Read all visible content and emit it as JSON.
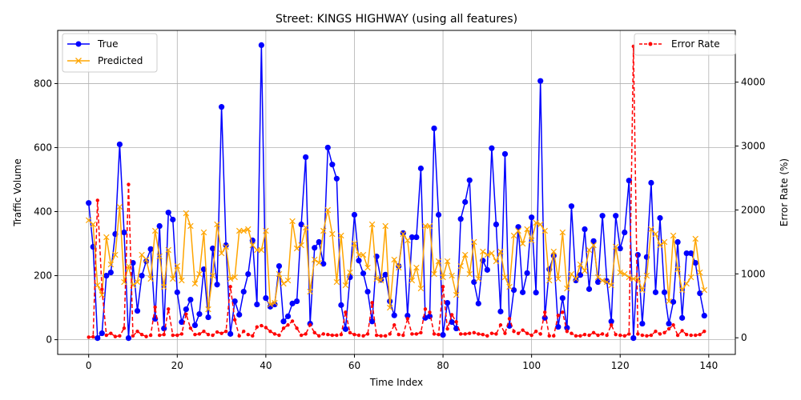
{
  "chart_data": {
    "type": "line",
    "title": "Street: KINGS HIGHWAY (using all features)",
    "xlabel": "Time Index",
    "ylabel_left": "Traffic Volume",
    "ylabel_right": "Error Rate (%)",
    "xlim": [
      -7,
      146
    ],
    "ylim_left": [
      -46,
      966
    ],
    "ylim_right": [
      -260,
      4810
    ],
    "x_ticks": [
      0,
      20,
      40,
      60,
      80,
      100,
      120,
      140
    ],
    "y_left_ticks": [
      0,
      200,
      400,
      600,
      800
    ],
    "y_right_ticks": [
      0,
      1000,
      2000,
      3000,
      4000
    ],
    "grid": true,
    "legend_left": "top-left",
    "legend_right": "top-right",
    "colors": {
      "true": "#0000ff",
      "predicted": "#ffa500",
      "error_rate": "#ff0000"
    },
    "series": [
      {
        "name": "True",
        "axis": "left",
        "style": "line-circle",
        "values": [
          427,
          290,
          5,
          20,
          200,
          210,
          330,
          610,
          335,
          5,
          240,
          90,
          200,
          245,
          283,
          65,
          355,
          35,
          397,
          375,
          148,
          55,
          95,
          125,
          45,
          80,
          220,
          70,
          285,
          172,
          727,
          295,
          18,
          120,
          78,
          150,
          205,
          310,
          110,
          920,
          130,
          103,
          110,
          230,
          57,
          73,
          113,
          120,
          360,
          570,
          50,
          287,
          305,
          237,
          600,
          547,
          503,
          108,
          33,
          195,
          390,
          247,
          207,
          150,
          57,
          260,
          187,
          203,
          120,
          76,
          230,
          333,
          75,
          320,
          320,
          535,
          68,
          73,
          660,
          390,
          15,
          115,
          55,
          35,
          377,
          430,
          498,
          180,
          113,
          247,
          218,
          598,
          360,
          88,
          580,
          43,
          155,
          352,
          148,
          208,
          382,
          147,
          808,
          68,
          220,
          262,
          40,
          130,
          37,
          417,
          185,
          202,
          345,
          158,
          308,
          180,
          387,
          183,
          57,
          387,
          285,
          335,
          497,
          5,
          265,
          50,
          258,
          490,
          148,
          380,
          148,
          50,
          118,
          305,
          68,
          270,
          270,
          240,
          145,
          75
        ]
      },
      {
        "name": "Predicted",
        "axis": "left",
        "style": "line-x",
        "values": [
          373,
          360,
          170,
          140,
          320,
          235,
          265,
          415,
          180,
          230,
          170,
          180,
          265,
          250,
          190,
          340,
          260,
          165,
          280,
          190,
          230,
          185,
          395,
          355,
          175,
          205,
          335,
          95,
          200,
          360,
          270,
          290,
          190,
          195,
          340,
          340,
          345,
          295,
          280,
          280,
          340,
          110,
          115,
          205,
          175,
          185,
          370,
          285,
          295,
          350,
          150,
          250,
          240,
          340,
          405,
          330,
          180,
          325,
          170,
          210,
          300,
          265,
          265,
          225,
          360,
          190,
          185,
          355,
          100,
          250,
          225,
          330,
          310,
          185,
          225,
          160,
          355,
          355,
          205,
          245,
          195,
          245,
          200,
          140,
          230,
          265,
          205,
          305,
          190,
          275,
          265,
          270,
          245,
          275,
          195,
          165,
          325,
          340,
          300,
          345,
          310,
          365,
          360,
          340,
          185,
          275,
          190,
          335,
          160,
          205,
          190,
          235,
          215,
          280,
          295,
          195,
          185,
          180,
          170,
          290,
          210,
          205,
          195,
          190,
          190,
          155,
          200,
          345,
          330,
          295,
          305,
          120,
          325,
          220,
          155,
          175,
          195,
          315,
          210,
          155
        ]
      },
      {
        "name": "Error Rate",
        "axis": "right",
        "style": "dashed-dot",
        "values": [
          10,
          15,
          2150,
          760,
          40,
          70,
          20,
          30,
          150,
          2400,
          30,
          100,
          50,
          20,
          40,
          480,
          40,
          50,
          450,
          40,
          40,
          60,
          370,
          150,
          50,
          60,
          100,
          50,
          40,
          90,
          70,
          100,
          800,
          280,
          30,
          100,
          50,
          30,
          170,
          190,
          160,
          100,
          60,
          40,
          150,
          200,
          260,
          150,
          40,
          60,
          200,
          80,
          30,
          60,
          50,
          40,
          40,
          50,
          400,
          80,
          50,
          40,
          30,
          60,
          550,
          40,
          30,
          30,
          60,
          200,
          50,
          40,
          300,
          60,
          60,
          80,
          450,
          400,
          60,
          50,
          800,
          140,
          360,
          250,
          60,
          60,
          70,
          80,
          60,
          50,
          30,
          70,
          60,
          200,
          70,
          300,
          100,
          70,
          120,
          70,
          40,
          100,
          60,
          400,
          30,
          30,
          350,
          400,
          100,
          70,
          30,
          30,
          50,
          40,
          80,
          40,
          60,
          40,
          200,
          50,
          40,
          30,
          60,
          4560,
          60,
          40,
          30,
          40,
          100,
          60,
          80,
          140,
          200,
          40,
          110,
          50,
          40,
          40,
          50,
          100
        ]
      }
    ]
  }
}
